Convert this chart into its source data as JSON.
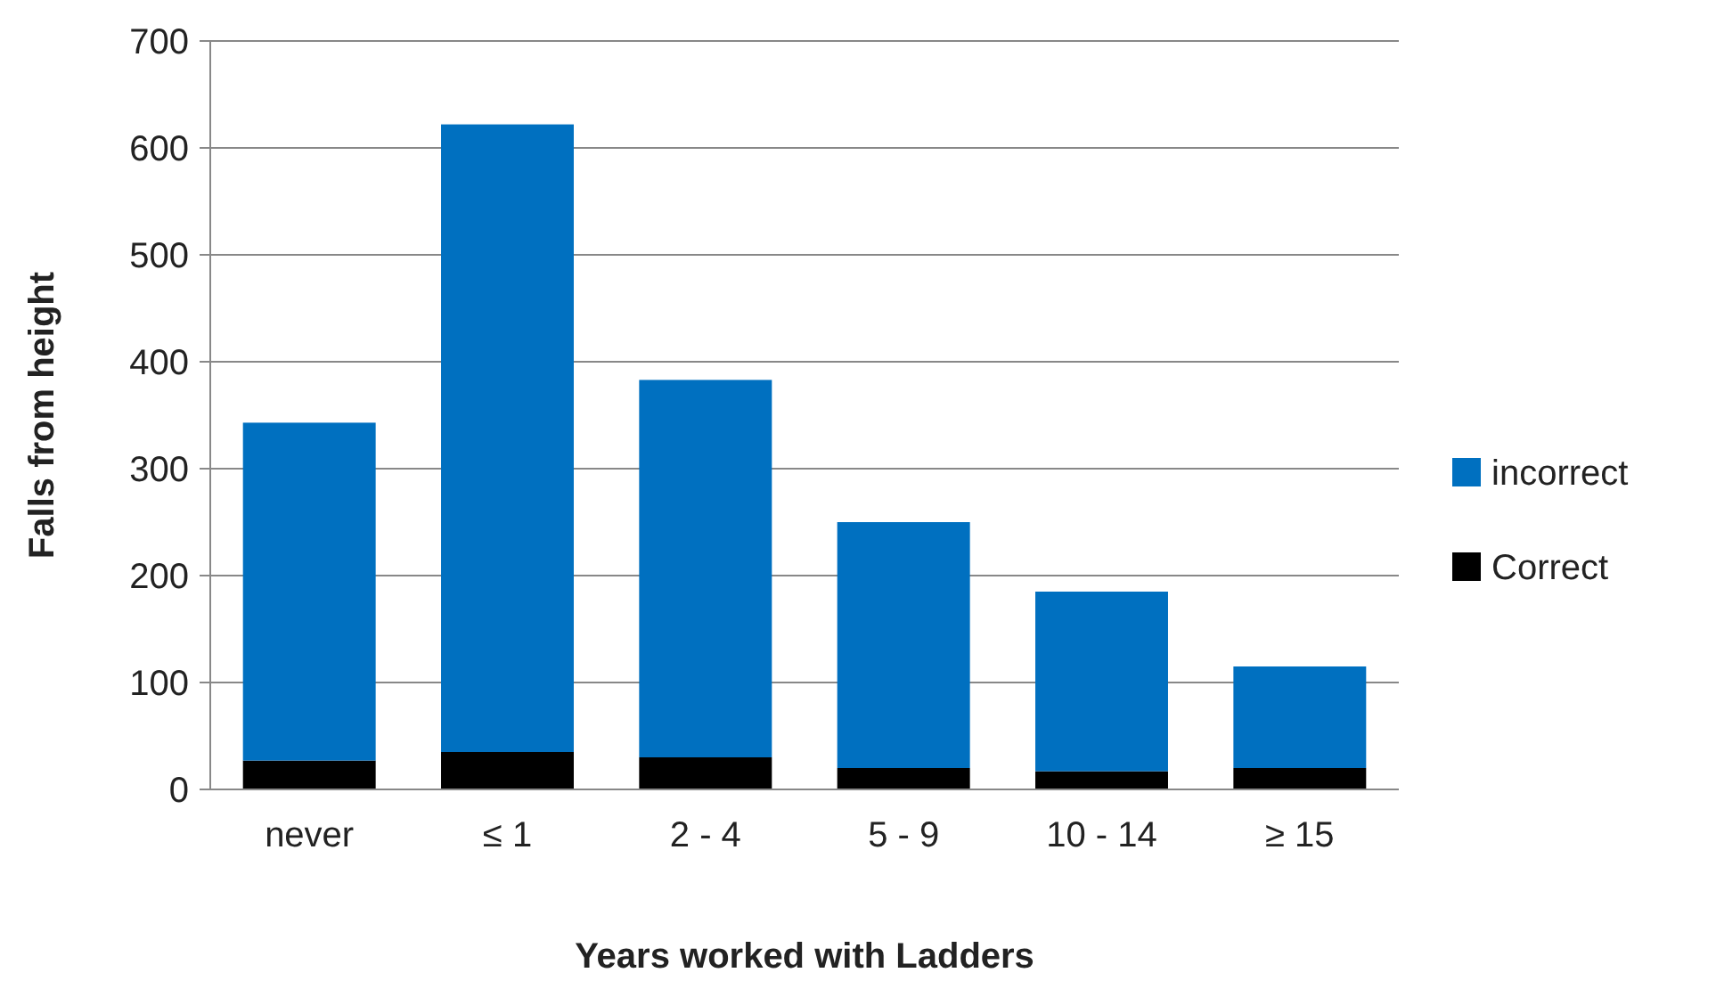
{
  "chart_data": {
    "type": "bar",
    "stacked": true,
    "xlabel": "Years worked with Ladders",
    "ylabel": "Falls from height",
    "categories": [
      "never",
      "≤ 1",
      "2 - 4",
      "5 - 9",
      "10 - 14",
      "≥ 15"
    ],
    "series": [
      {
        "name": "Correct",
        "color": "#000000",
        "values": [
          27,
          35,
          30,
          20,
          17,
          20
        ]
      },
      {
        "name": "incorrect",
        "color": "#0070c0",
        "values": [
          316,
          587,
          353,
          230,
          168,
          95
        ]
      }
    ],
    "ylim": [
      0,
      700
    ],
    "yticks": [
      0,
      100,
      200,
      300,
      400,
      500,
      600,
      700
    ],
    "grid": "y",
    "legend": "right"
  }
}
